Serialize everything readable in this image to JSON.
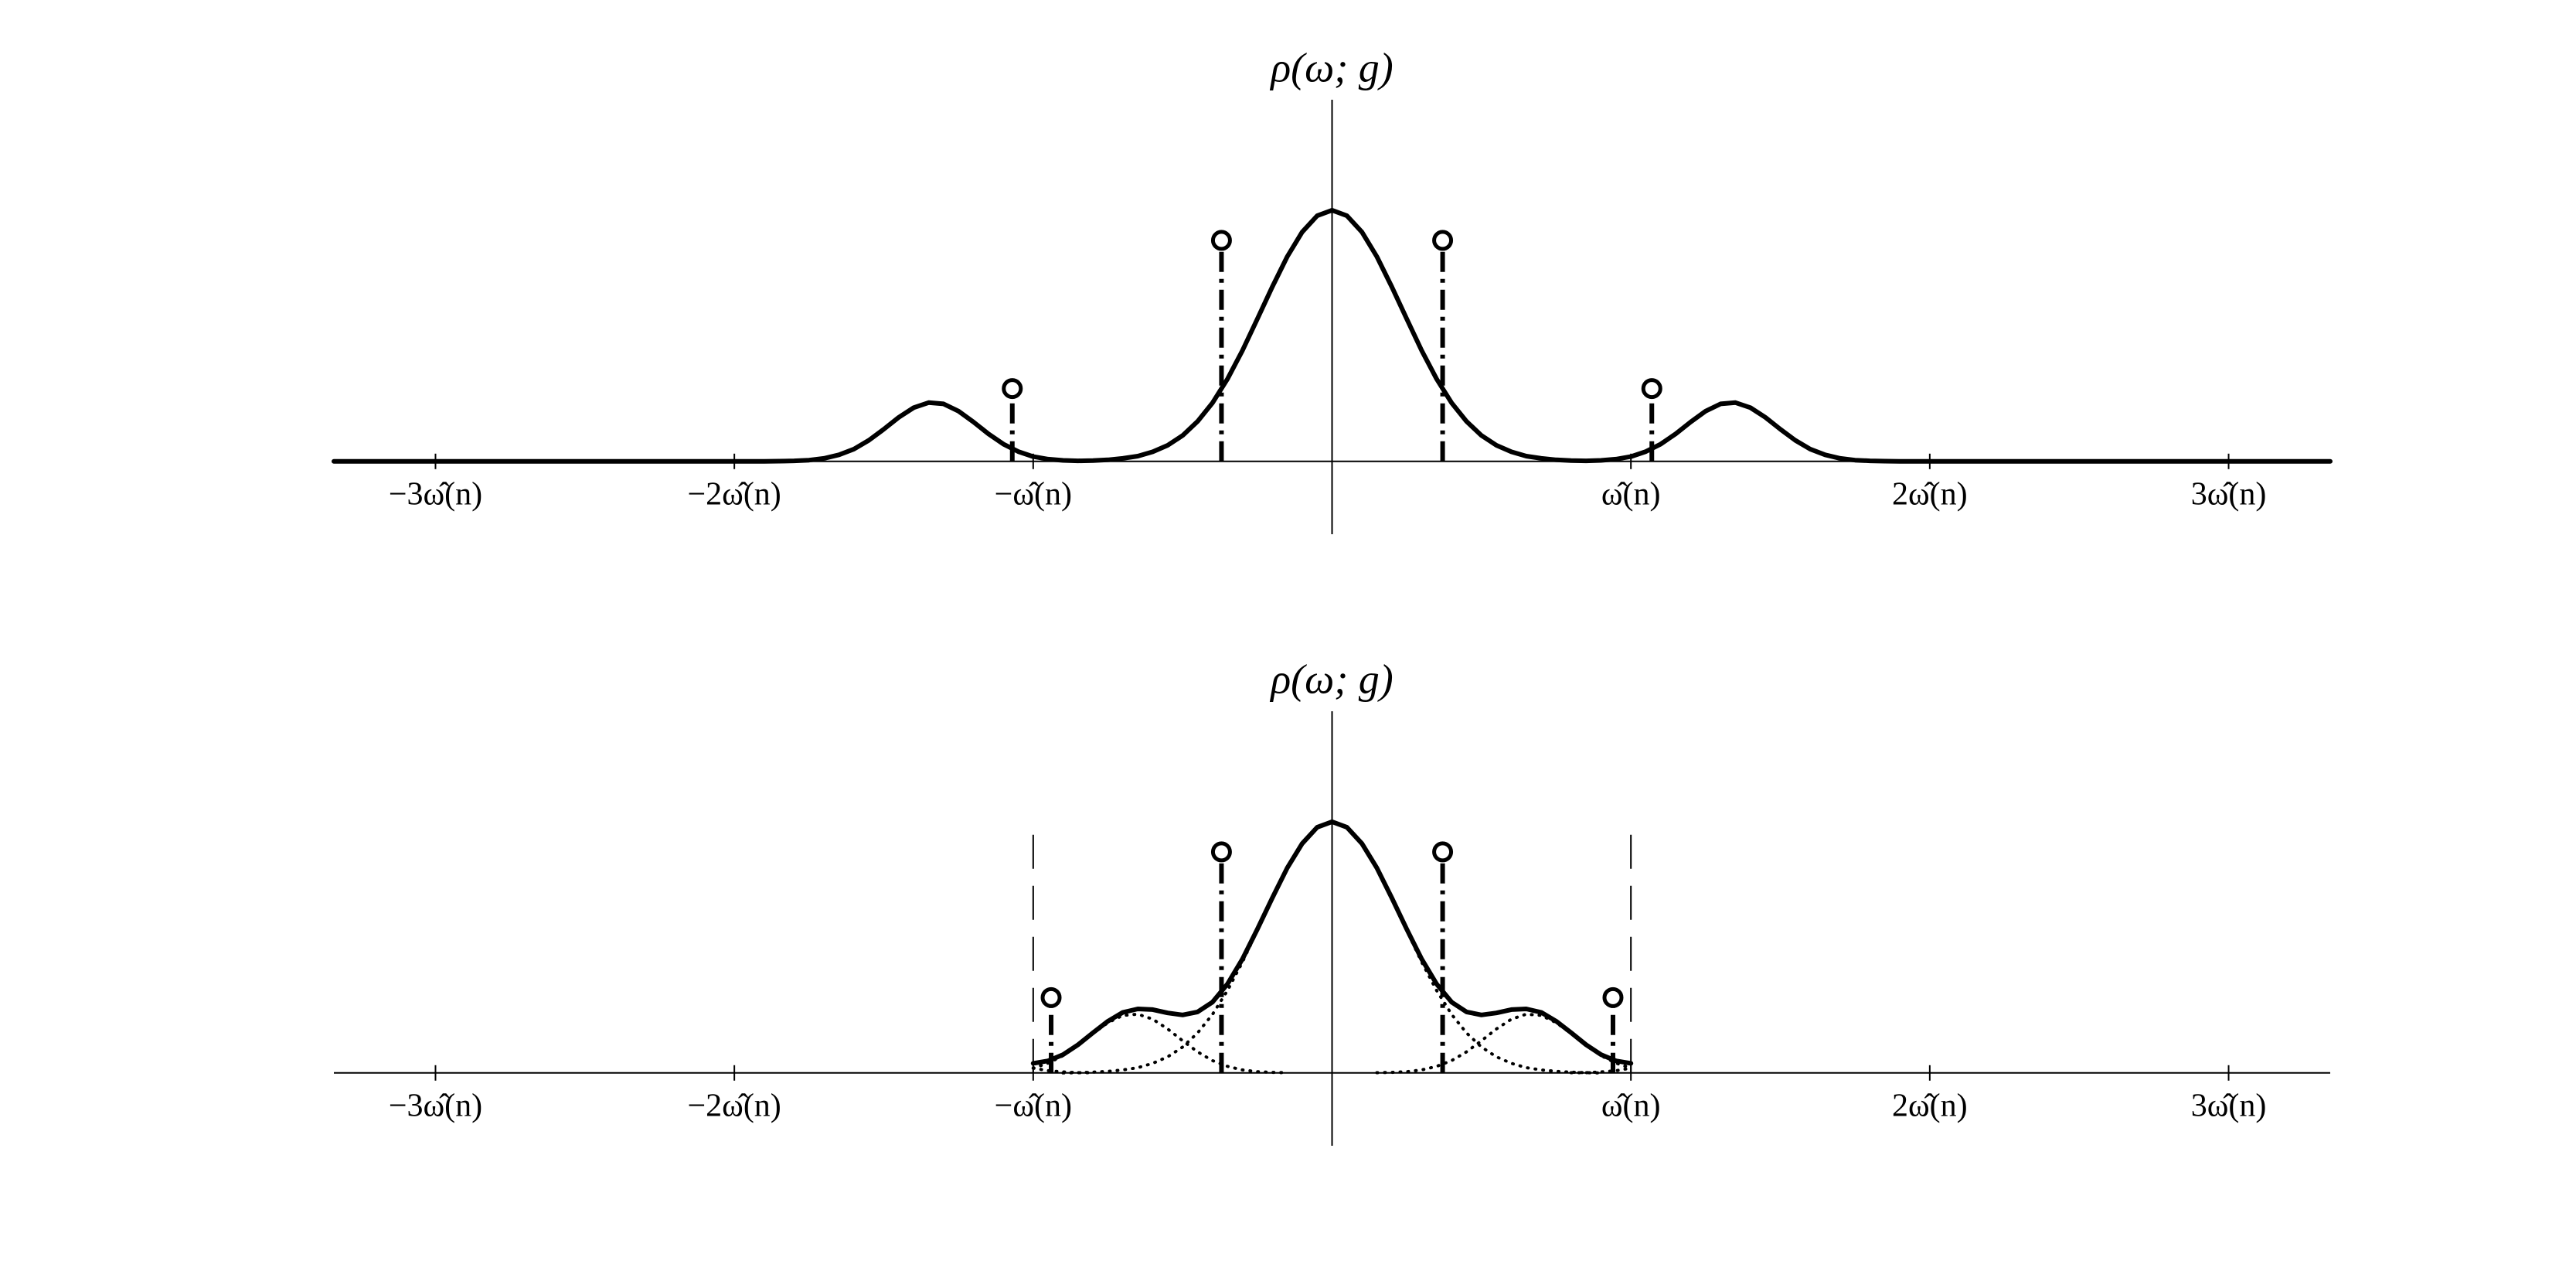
{
  "chart_data": [
    {
      "type": "line",
      "ylabel": "ρ(ω; g)",
      "xlim": [
        -3.34,
        3.34
      ],
      "ylim": [
        -0.29,
        1.44
      ],
      "xticks": [
        {
          "value": -3,
          "label": "−3ω̂(n)"
        },
        {
          "value": -2,
          "label": "−2ω̂(n)"
        },
        {
          "value": -1,
          "label": "−ω̂(n)"
        },
        {
          "value": 1,
          "label": "ω̂(n)"
        },
        {
          "value": 2,
          "label": "2ω̂(n)"
        },
        {
          "value": 3,
          "label": "3ω̂(n)"
        }
      ],
      "series": [
        {
          "style": "solid",
          "color": "#000000",
          "x": [
            -3.34,
            -1.9,
            -1.85,
            -1.8,
            -1.75,
            -1.7,
            -1.65,
            -1.6,
            -1.55,
            -1.5,
            -1.45,
            -1.4,
            -1.35,
            -1.3,
            -1.25,
            -1.2,
            -1.15,
            -1.1,
            -1.05,
            -1,
            -0.95,
            -0.9,
            -0.85,
            -0.8,
            -0.75,
            -0.7,
            -0.65,
            -0.6,
            -0.55,
            -0.5,
            -0.45,
            -0.4,
            -0.35,
            -0.3,
            -0.25,
            -0.2,
            -0.15,
            -0.1,
            -0.05,
            0,
            0.05,
            0.1,
            0.15,
            0.2,
            0.25,
            0.3,
            0.35,
            0.4,
            0.45,
            0.5,
            0.55,
            0.6,
            0.65,
            0.7,
            0.75,
            0.8,
            0.85,
            0.9,
            0.95,
            1,
            1.05,
            1.1,
            1.15,
            1.2,
            1.25,
            1.3,
            1.35,
            1.4,
            1.45,
            1.5,
            1.55,
            1.6,
            1.65,
            1.7,
            1.75,
            1.8,
            1.85,
            1.9,
            3.34
          ],
          "values": [
            0,
            0,
            0.001,
            0.002,
            0.005,
            0.012,
            0.026,
            0.049,
            0.084,
            0.128,
            0.175,
            0.214,
            0.234,
            0.229,
            0.2,
            0.157,
            0.11,
            0.069,
            0.039,
            0.019,
            0.009,
            0.004,
            0.002,
            0.003,
            0.006,
            0.012,
            0.021,
            0.038,
            0.064,
            0.103,
            0.159,
            0.233,
            0.328,
            0.441,
            0.567,
            0.695,
            0.815,
            0.913,
            0.978,
            1,
            0.978,
            0.913,
            0.815,
            0.695,
            0.567,
            0.441,
            0.328,
            0.233,
            0.159,
            0.103,
            0.064,
            0.038,
            0.021,
            0.012,
            0.006,
            0.003,
            0.002,
            0.004,
            0.009,
            0.019,
            0.039,
            0.069,
            0.11,
            0.157,
            0.2,
            0.229,
            0.234,
            0.214,
            0.175,
            0.128,
            0.084,
            0.049,
            0.026,
            0.012,
            0.005,
            0.002,
            0.001,
            0,
            0
          ]
        }
      ],
      "stems": {
        "x": [
          -1.07,
          -0.37,
          0.37,
          1.07
        ],
        "values": [
          0.29,
          0.88,
          0.88,
          0.29
        ]
      }
    },
    {
      "type": "line",
      "ylabel": "ρ(ω; g)",
      "xlim": [
        -3.34,
        3.34
      ],
      "ylim": [
        -0.29,
        1.44
      ],
      "xticks": [
        {
          "value": -3,
          "label": "−3ω̂(n)"
        },
        {
          "value": -2,
          "label": "−2ω̂(n)"
        },
        {
          "value": -1,
          "label": "−ω̂(n)"
        },
        {
          "value": 1,
          "label": "ω̂(n)"
        },
        {
          "value": 2,
          "label": "2ω̂(n)"
        },
        {
          "value": 3,
          "label": "3ω̂(n)"
        }
      ],
      "series": [
        {
          "style": "solid",
          "color": "#000000",
          "x": [
            -1,
            -0.95,
            -0.9,
            -0.85,
            -0.8,
            -0.75,
            -0.7,
            -0.65,
            -0.6,
            -0.55,
            -0.5,
            -0.45,
            -0.4,
            -0.35,
            -0.3,
            -0.25,
            -0.2,
            -0.15,
            -0.1,
            -0.05,
            0,
            0.05,
            0.1,
            0.15,
            0.2,
            0.25,
            0.3,
            0.35,
            0.4,
            0.45,
            0.5,
            0.55,
            0.6,
            0.65,
            0.7,
            0.75,
            0.8,
            0.85,
            0.9,
            0.95,
            1
          ],
          "values": [
            0.038,
            0.048,
            0.073,
            0.112,
            0.16,
            0.206,
            0.241,
            0.255,
            0.252,
            0.239,
            0.231,
            0.243,
            0.282,
            0.354,
            0.453,
            0.572,
            0.697,
            0.816,
            0.913,
            0.978,
            1,
            0.978,
            0.913,
            0.816,
            0.697,
            0.572,
            0.453,
            0.354,
            0.282,
            0.243,
            0.231,
            0.239,
            0.252,
            0.255,
            0.241,
            0.206,
            0.16,
            0.112,
            0.073,
            0.048,
            0.038
          ]
        },
        {
          "style": "dotted",
          "color": "#000000",
          "x": [
            -0.9,
            -0.85,
            -0.8,
            -0.75,
            -0.7,
            -0.65,
            -0.6,
            -0.55,
            -0.5,
            -0.45,
            -0.4,
            -0.35,
            -0.3,
            -0.25,
            -0.2,
            -0.15,
            -0.1,
            -0.05,
            0,
            0.05,
            0.1,
            0.15,
            0.2,
            0.25,
            0.3,
            0.35,
            0.4,
            0.45,
            0.5,
            0.55,
            0.6,
            0.65,
            0.7,
            0.75,
            0.8,
            0.85,
            0.9
          ],
          "values": [
            0,
            0.001,
            0.003,
            0.006,
            0.012,
            0.021,
            0.038,
            0.064,
            0.103,
            0.159,
            0.233,
            0.328,
            0.441,
            0.567,
            0.695,
            0.815,
            0.913,
            0.978,
            1,
            0.978,
            0.913,
            0.815,
            0.695,
            0.567,
            0.441,
            0.328,
            0.233,
            0.159,
            0.103,
            0.064,
            0.038,
            0.021,
            0.012,
            0.006,
            0.003,
            0.001,
            0
          ]
        },
        {
          "style": "dotted",
          "color": "#000000",
          "x": [
            -1,
            -0.95,
            -0.9,
            -0.85,
            -0.8,
            -0.75,
            -0.7,
            -0.65,
            -0.6,
            -0.55,
            -0.5,
            -0.45,
            -0.4,
            -0.35,
            -0.3,
            -0.25,
            -0.2,
            -0.15
          ],
          "values": [
            0.019,
            0.039,
            0.069,
            0.11,
            0.157,
            0.2,
            0.229,
            0.234,
            0.214,
            0.175,
            0.128,
            0.084,
            0.049,
            0.026,
            0.012,
            0.005,
            0.002,
            0.001
          ]
        },
        {
          "style": "dotted",
          "color": "#000000",
          "x": [
            0.15,
            0.2,
            0.25,
            0.3,
            0.35,
            0.4,
            0.45,
            0.5,
            0.55,
            0.6,
            0.65,
            0.7,
            0.75,
            0.8,
            0.85,
            0.9,
            0.95,
            1
          ],
          "values": [
            0.001,
            0.002,
            0.005,
            0.012,
            0.026,
            0.049,
            0.084,
            0.128,
            0.175,
            0.214,
            0.234,
            0.229,
            0.2,
            0.157,
            0.11,
            0.069,
            0.039,
            0.019
          ]
        },
        {
          "style": "dotted",
          "color": "#000000",
          "x": [
            -1,
            -0.95,
            -0.9,
            -0.85,
            -0.8
          ],
          "values": [
            0.019,
            0.009,
            0.004,
            0.001,
            0.001
          ]
        },
        {
          "style": "dotted",
          "color": "#000000",
          "x": [
            0.8,
            0.85,
            0.9,
            0.95,
            1
          ],
          "values": [
            0.001,
            0.001,
            0.004,
            0.009,
            0.019
          ]
        }
      ],
      "stems": {
        "x": [
          -0.94,
          -0.37,
          0.37,
          0.94
        ],
        "values": [
          0.3,
          0.88,
          0.88,
          0.3
        ]
      },
      "bounds": {
        "x": [
          -1,
          1
        ],
        "values": [
          0.95,
          0.95
        ]
      }
    }
  ]
}
